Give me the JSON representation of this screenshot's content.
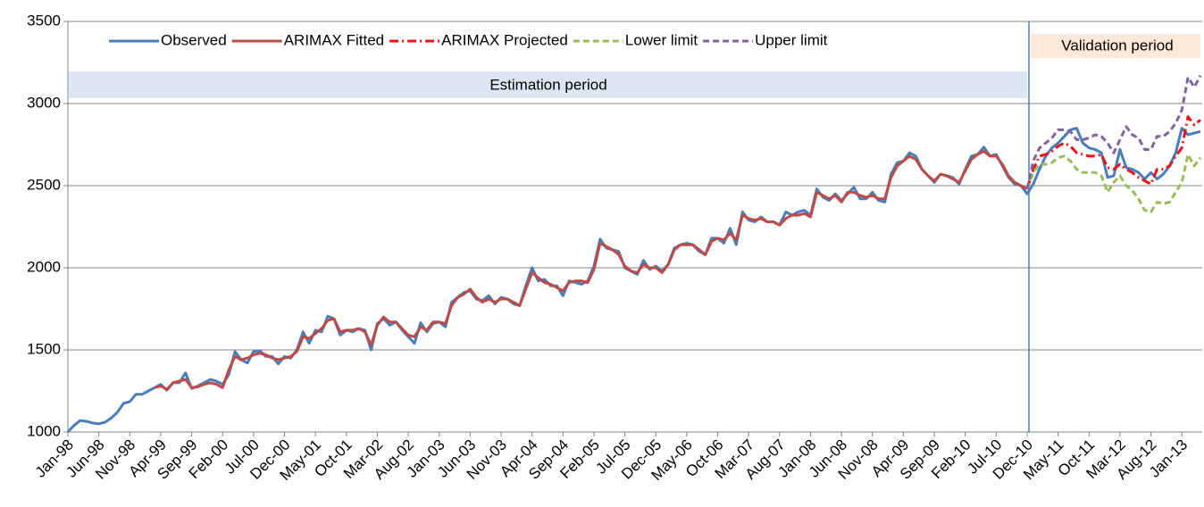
{
  "chart_data": {
    "type": "line",
    "categories": [
      "Jan-98",
      null,
      null,
      null,
      null,
      "Jun-98",
      null,
      null,
      null,
      null,
      "Nov-98",
      null,
      null,
      null,
      null,
      "Apr-99",
      null,
      null,
      null,
      null,
      "Sep-99",
      null,
      null,
      null,
      null,
      "Feb-00",
      null,
      null,
      null,
      null,
      "Jul-00",
      null,
      null,
      null,
      null,
      "Dec-00",
      null,
      null,
      null,
      null,
      "May-01",
      null,
      null,
      null,
      null,
      "Oct-01",
      null,
      null,
      null,
      null,
      "Mar-02",
      null,
      null,
      null,
      null,
      "Aug-02",
      null,
      null,
      null,
      null,
      "Jan-03",
      null,
      null,
      null,
      null,
      "Jun-03",
      null,
      null,
      null,
      null,
      "Nov-03",
      null,
      null,
      null,
      null,
      "Apr-04",
      null,
      null,
      null,
      null,
      "Sep-04",
      null,
      null,
      null,
      null,
      "Feb-05",
      null,
      null,
      null,
      null,
      "Jul-05",
      null,
      null,
      null,
      null,
      "Dec-05",
      null,
      null,
      null,
      null,
      "May-06",
      null,
      null,
      null,
      null,
      "Oct-06",
      null,
      null,
      null,
      null,
      "Mar-07",
      null,
      null,
      null,
      null,
      "Aug-07",
      null,
      null,
      null,
      null,
      "Jan-08",
      null,
      null,
      null,
      null,
      "Jun-08",
      null,
      null,
      null,
      null,
      "Nov-08",
      null,
      null,
      null,
      null,
      "Apr-09",
      null,
      null,
      null,
      null,
      "Sep-09",
      null,
      null,
      null,
      null,
      "Feb-10",
      null,
      null,
      null,
      null,
      "Jul-10",
      null,
      null,
      null,
      null,
      "Dec-10",
      null,
      null,
      null,
      null,
      "May-11",
      null,
      null,
      null,
      null,
      "Oct-11",
      null,
      null,
      null,
      null,
      "Mar-12",
      null,
      null,
      null,
      null,
      "Aug-12",
      null,
      null,
      null,
      null,
      "Jan-13",
      null,
      null,
      null
    ],
    "series": [
      {
        "name": "Observed",
        "color": "#4a7ebb",
        "dash": "solid",
        "values": [
          1000,
          1040,
          1070,
          1065,
          1055,
          1050,
          1060,
          1085,
          1120,
          1175,
          1185,
          1230,
          1230,
          1250,
          1270,
          1290,
          1255,
          1300,
          1300,
          1360,
          1265,
          1280,
          1300,
          1320,
          1310,
          1290,
          1350,
          1490,
          1440,
          1420,
          1490,
          1495,
          1460,
          1460,
          1415,
          1460,
          1450,
          1500,
          1610,
          1540,
          1620,
          1610,
          1705,
          1690,
          1590,
          1620,
          1610,
          1630,
          1620,
          1500,
          1660,
          1690,
          1650,
          1670,
          1620,
          1580,
          1540,
          1665,
          1610,
          1660,
          1670,
          1640,
          1790,
          1820,
          1850,
          1860,
          1810,
          1800,
          1830,
          1780,
          1820,
          1810,
          1780,
          1770,
          1890,
          2000,
          1920,
          1930,
          1890,
          1890,
          1830,
          1920,
          1910,
          1900,
          1920,
          2010,
          2175,
          2120,
          2110,
          2100,
          2000,
          1980,
          1960,
          2045,
          1990,
          2010,
          1980,
          2020,
          2120,
          2140,
          2150,
          2140,
          2100,
          2080,
          2180,
          2180,
          2150,
          2240,
          2140,
          2340,
          2290,
          2280,
          2310,
          2280,
          2280,
          2260,
          2340,
          2320,
          2340,
          2350,
          2320,
          2480,
          2430,
          2410,
          2450,
          2410,
          2450,
          2490,
          2420,
          2420,
          2460,
          2410,
          2400,
          2570,
          2640,
          2650,
          2700,
          2680,
          2600,
          2560,
          2520,
          2570,
          2560,
          2550,
          2510,
          2600,
          2680,
          2690,
          2735,
          2680,
          2690,
          2620,
          2550,
          2510,
          2500,
          2450,
          2510,
          2600,
          2680,
          2730,
          2760,
          2800,
          2840,
          2850,
          2760,
          2730,
          2720,
          2700,
          2550,
          2560,
          2720,
          2610,
          2600,
          2580,
          2540,
          2580,
          2540,
          2570,
          2620,
          2700,
          2850,
          2810,
          2820,
          2830
        ]
      },
      {
        "name": "ARIMAX Fitted",
        "color": "#be4b48",
        "dash": "solid",
        "values": [
          null,
          null,
          null,
          null,
          null,
          null,
          null,
          null,
          null,
          null,
          null,
          null,
          null,
          null,
          1270,
          1280,
          1260,
          1300,
          1310,
          1320,
          1270,
          1275,
          1290,
          1300,
          1290,
          1270,
          1380,
          1460,
          1440,
          1450,
          1470,
          1480,
          1470,
          1450,
          1440,
          1450,
          1460,
          1490,
          1580,
          1570,
          1600,
          1630,
          1680,
          1690,
          1610,
          1620,
          1620,
          1630,
          1610,
          1530,
          1650,
          1700,
          1670,
          1670,
          1630,
          1590,
          1580,
          1640,
          1620,
          1670,
          1670,
          1660,
          1770,
          1820,
          1840,
          1870,
          1820,
          1790,
          1810,
          1790,
          1810,
          1810,
          1790,
          1770,
          1870,
          1970,
          1940,
          1910,
          1900,
          1880,
          1860,
          1910,
          1920,
          1920,
          1910,
          1990,
          2150,
          2130,
          2110,
          2080,
          2010,
          1980,
          1970,
          2020,
          2000,
          2000,
          1970,
          2020,
          2110,
          2140,
          2140,
          2140,
          2110,
          2080,
          2160,
          2180,
          2170,
          2210,
          2170,
          2320,
          2300,
          2290,
          2300,
          2280,
          2280,
          2260,
          2300,
          2320,
          2320,
          2330,
          2310,
          2460,
          2440,
          2420,
          2440,
          2400,
          2460,
          2460,
          2440,
          2430,
          2440,
          2420,
          2420,
          2550,
          2620,
          2650,
          2680,
          2660,
          2600,
          2560,
          2530,
          2570,
          2560,
          2540,
          2520,
          2590,
          2660,
          2690,
          2710,
          2680,
          2680,
          2630,
          2560,
          2520,
          2500,
          2480,
          null,
          null,
          null,
          null,
          null,
          null,
          null,
          null,
          null,
          null,
          null,
          null,
          null,
          null,
          null,
          null,
          null,
          null,
          null,
          null,
          null,
          null,
          null,
          null,
          null,
          null,
          null,
          null
        ]
      },
      {
        "name": "ARIMAX Projected",
        "color": "#e8141b",
        "dash": "dashdot",
        "values": [
          null,
          null,
          null,
          null,
          null,
          null,
          null,
          null,
          null,
          null,
          null,
          null,
          null,
          null,
          null,
          null,
          null,
          null,
          null,
          null,
          null,
          null,
          null,
          null,
          null,
          null,
          null,
          null,
          null,
          null,
          null,
          null,
          null,
          null,
          null,
          null,
          null,
          null,
          null,
          null,
          null,
          null,
          null,
          null,
          null,
          null,
          null,
          null,
          null,
          null,
          null,
          null,
          null,
          null,
          null,
          null,
          null,
          null,
          null,
          null,
          null,
          null,
          null,
          null,
          null,
          null,
          null,
          null,
          null,
          null,
          null,
          null,
          null,
          null,
          null,
          null,
          null,
          null,
          null,
          null,
          null,
          null,
          null,
          null,
          null,
          null,
          null,
          null,
          null,
          null,
          null,
          null,
          null,
          null,
          null,
          null,
          null,
          null,
          null,
          null,
          null,
          null,
          null,
          null,
          null,
          null,
          null,
          null,
          null,
          null,
          null,
          null,
          null,
          null,
          null,
          null,
          null,
          null,
          null,
          null,
          null,
          null,
          null,
          null,
          null,
          null,
          null,
          null,
          null,
          null,
          null,
          null,
          null,
          null,
          null,
          null,
          null,
          null,
          null,
          null,
          null,
          null,
          null,
          null,
          null,
          null,
          null,
          null,
          null,
          null,
          null,
          null,
          null,
          null,
          null,
          2480,
          2600,
          2680,
          2690,
          2710,
          2740,
          2760,
          2740,
          2700,
          2690,
          2680,
          2680,
          2690,
          2610,
          2600,
          2630,
          2600,
          2580,
          2550,
          2530,
          2510,
          2600,
          2600,
          2620,
          2680,
          2730,
          2920,
          2870,
          2900
        ]
      },
      {
        "name": "Lower limit",
        "color": "#9bbb59",
        "dash": "dashed",
        "values": [
          null,
          null,
          null,
          null,
          null,
          null,
          null,
          null,
          null,
          null,
          null,
          null,
          null,
          null,
          null,
          null,
          null,
          null,
          null,
          null,
          null,
          null,
          null,
          null,
          null,
          null,
          null,
          null,
          null,
          null,
          null,
          null,
          null,
          null,
          null,
          null,
          null,
          null,
          null,
          null,
          null,
          null,
          null,
          null,
          null,
          null,
          null,
          null,
          null,
          null,
          null,
          null,
          null,
          null,
          null,
          null,
          null,
          null,
          null,
          null,
          null,
          null,
          null,
          null,
          null,
          null,
          null,
          null,
          null,
          null,
          null,
          null,
          null,
          null,
          null,
          null,
          null,
          null,
          null,
          null,
          null,
          null,
          null,
          null,
          null,
          null,
          null,
          null,
          null,
          null,
          null,
          null,
          null,
          null,
          null,
          null,
          null,
          null,
          null,
          null,
          null,
          null,
          null,
          null,
          null,
          null,
          null,
          null,
          null,
          null,
          null,
          null,
          null,
          null,
          null,
          null,
          null,
          null,
          null,
          null,
          null,
          null,
          null,
          null,
          null,
          null,
          null,
          null,
          null,
          null,
          null,
          null,
          null,
          null,
          null,
          null,
          null,
          null,
          null,
          null,
          null,
          null,
          null,
          null,
          null,
          null,
          null,
          null,
          null,
          null,
          null,
          null,
          null,
          null,
          null,
          2480,
          2580,
          2630,
          2630,
          2640,
          2670,
          2680,
          2650,
          2600,
          2580,
          2580,
          2580,
          2560,
          2460,
          2520,
          2560,
          2500,
          2470,
          2420,
          2350,
          2340,
          2400,
          2390,
          2400,
          2460,
          2520,
          2690,
          2620,
          2670
        ]
      },
      {
        "name": "Upper limit",
        "color": "#8064a2",
        "dash": "dashed",
        "values": [
          null,
          null,
          null,
          null,
          null,
          null,
          null,
          null,
          null,
          null,
          null,
          null,
          null,
          null,
          null,
          null,
          null,
          null,
          null,
          null,
          null,
          null,
          null,
          null,
          null,
          null,
          null,
          null,
          null,
          null,
          null,
          null,
          null,
          null,
          null,
          null,
          null,
          null,
          null,
          null,
          null,
          null,
          null,
          null,
          null,
          null,
          null,
          null,
          null,
          null,
          null,
          null,
          null,
          null,
          null,
          null,
          null,
          null,
          null,
          null,
          null,
          null,
          null,
          null,
          null,
          null,
          null,
          null,
          null,
          null,
          null,
          null,
          null,
          null,
          null,
          null,
          null,
          null,
          null,
          null,
          null,
          null,
          null,
          null,
          null,
          null,
          null,
          null,
          null,
          null,
          null,
          null,
          null,
          null,
          null,
          null,
          null,
          null,
          null,
          null,
          null,
          null,
          null,
          null,
          null,
          null,
          null,
          null,
          null,
          null,
          null,
          null,
          null,
          null,
          null,
          null,
          null,
          null,
          null,
          null,
          null,
          null,
          null,
          null,
          null,
          null,
          null,
          null,
          null,
          null,
          null,
          null,
          null,
          null,
          null,
          null,
          null,
          null,
          null,
          null,
          null,
          null,
          null,
          null,
          null,
          null,
          null,
          null,
          null,
          null,
          null,
          null,
          null,
          null,
          null,
          2480,
          2650,
          2730,
          2760,
          2790,
          2840,
          2840,
          2830,
          2780,
          2780,
          2790,
          2810,
          2800,
          2760,
          2700,
          2780,
          2860,
          2810,
          2790,
          2720,
          2720,
          2800,
          2800,
          2830,
          2880,
          2960,
          3160,
          3100,
          3170
        ]
      }
    ],
    "annotations": [
      "Estimation period",
      "Validation period"
    ],
    "ylim": [
      1000,
      3500
    ],
    "yticks": [
      1000,
      1500,
      2000,
      2500,
      3000,
      3500
    ],
    "grid": true,
    "legend": "top"
  }
}
